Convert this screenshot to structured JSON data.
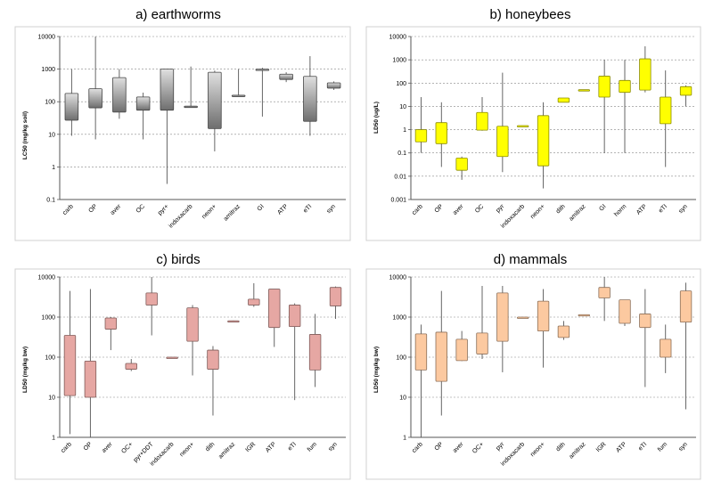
{
  "chart_data": [
    {
      "type": "box",
      "title": "a) earthworms",
      "ylabel": "LC50 (mg/kg soil)",
      "yscale": "log",
      "ylim": [
        0.1,
        10000
      ],
      "yticks": [
        "10000",
        "1000",
        "100",
        "10",
        "1",
        "0.1"
      ],
      "grid": "horizontal dashed",
      "color": "#8a8a8a",
      "categories": [
        "carb",
        "OP",
        "aver",
        "OC",
        "pyr+",
        "indoxacarb",
        "neon+",
        "amitraz",
        "GI",
        "ATP",
        "eTI",
        "syn"
      ],
      "boxes": [
        {
          "min": 9,
          "q1": 27,
          "q3": 180,
          "max": 1000
        },
        {
          "min": 7,
          "q1": 65,
          "q3": 250,
          "max": 10000
        },
        {
          "min": 30,
          "q1": 48,
          "q3": 550,
          "max": 1000
        },
        {
          "min": 7,
          "q1": 55,
          "q3": 140,
          "max": 190
        },
        {
          "min": 0.3,
          "q1": 55,
          "q3": 1000,
          "max": 1000
        },
        {
          "min": 68,
          "q1": 70,
          "q3": 73,
          "max": 1200
        },
        {
          "min": 3,
          "q1": 15,
          "q3": 800,
          "max": 900
        },
        {
          "min": 150,
          "q1": 152,
          "q3": 158,
          "max": 1000
        },
        {
          "min": 35,
          "q1": 930,
          "q3": 1000,
          "max": 1100
        },
        {
          "min": 400,
          "q1": 480,
          "q3": 700,
          "max": 800
        },
        {
          "min": 9,
          "q1": 25,
          "q3": 600,
          "max": 2500
        },
        {
          "min": 230,
          "q1": 260,
          "q3": 380,
          "max": 420
        }
      ]
    },
    {
      "type": "box",
      "title": "b) honeybees",
      "ylabel": "LD50 (ug/L)",
      "yscale": "log",
      "ylim": [
        0.001,
        10000
      ],
      "yticks": [
        "10000",
        "1000",
        "100",
        "10",
        "1",
        "0.1",
        "0.01",
        "0.001"
      ],
      "grid": "horizontal dashed",
      "color": "#ffff00",
      "categories": [
        "carb",
        "OP",
        "aver",
        "OC",
        "pyr",
        "indoxacarb",
        "neon+",
        "dith",
        "amitraz",
        "GI",
        "horm",
        "ATP",
        "eTI",
        "syn"
      ],
      "boxes": [
        {
          "min": 0.1,
          "q1": 0.3,
          "q3": 1,
          "max": 25
        },
        {
          "min": 0.025,
          "q1": 0.25,
          "q3": 2,
          "max": 15
        },
        {
          "min": 0.007,
          "q1": 0.018,
          "q3": 0.06,
          "max": 0.07
        },
        {
          "min": 0.9,
          "q1": 0.95,
          "q3": 5.5,
          "max": 25
        },
        {
          "min": 0.015,
          "q1": 0.07,
          "q3": 1.4,
          "max": 280
        },
        {
          "min": 1.3,
          "q1": 1.35,
          "q3": 1.5,
          "max": 1.5
        },
        {
          "min": 0.003,
          "q1": 0.028,
          "q3": 4,
          "max": 15
        },
        {
          "min": 15,
          "q1": 15,
          "q3": 23,
          "max": 23
        },
        {
          "min": 48,
          "q1": 49,
          "q3": 52,
          "max": 52
        },
        {
          "min": 0.1,
          "q1": 25,
          "q3": 200,
          "max": 1000
        },
        {
          "min": 0.1,
          "q1": 40,
          "q3": 130,
          "max": 1000
        },
        {
          "min": 40,
          "q1": 50,
          "q3": 1100,
          "max": 3800
        },
        {
          "min": 0.025,
          "q1": 1.8,
          "q3": 25,
          "max": 350
        },
        {
          "min": 10,
          "q1": 30,
          "q3": 70,
          "max": 80
        }
      ]
    },
    {
      "type": "box",
      "title": "c) birds",
      "ylabel": "LD50 (mg/kg bw)",
      "yscale": "log",
      "ylim": [
        1,
        10000
      ],
      "yticks": [
        "10000",
        "1000",
        "100",
        "10",
        "1"
      ],
      "grid": "horizontal dashed",
      "color": "#e6a7a3",
      "categories": [
        "carb",
        "OP",
        "aver",
        "OC+",
        "pyr+DDT",
        "indoxacarb",
        "neon+",
        "dith",
        "amitraz",
        "IGR",
        "ATP",
        "eTI",
        "fum",
        "syn"
      ],
      "boxes": [
        {
          "min": 1.2,
          "q1": 11,
          "q3": 350,
          "max": 4500
        },
        {
          "min": 1,
          "q1": 10,
          "q3": 80,
          "max": 5000
        },
        {
          "min": 150,
          "q1": 500,
          "q3": 950,
          "max": 1000
        },
        {
          "min": 45,
          "q1": 50,
          "q3": 70,
          "max": 90
        },
        {
          "min": 350,
          "q1": 2000,
          "q3": 4000,
          "max": 10000
        },
        {
          "min": 95,
          "q1": 97,
          "q3": 100,
          "max": 100
        },
        {
          "min": 35,
          "q1": 250,
          "q3": 1700,
          "max": 2000
        },
        {
          "min": 3.5,
          "q1": 50,
          "q3": 150,
          "max": 190
        },
        {
          "min": 780,
          "q1": 790,
          "q3": 810,
          "max": 820
        },
        {
          "min": 1800,
          "q1": 2000,
          "q3": 2800,
          "max": 7000
        },
        {
          "min": 180,
          "q1": 550,
          "q3": 5000,
          "max": 5000
        },
        {
          "min": 8.5,
          "q1": 580,
          "q3": 2000,
          "max": 2200
        },
        {
          "min": 18,
          "q1": 48,
          "q3": 370,
          "max": 1200
        },
        {
          "min": 900,
          "q1": 1900,
          "q3": 5500,
          "max": 5800
        }
      ]
    },
    {
      "type": "box",
      "title": "d) mammals",
      "ylabel": "LD50 (mg/kg bw)",
      "yscale": "log",
      "ylim": [
        1,
        10000
      ],
      "yticks": [
        "10000",
        "1000",
        "100",
        "10",
        "1"
      ],
      "grid": "horizontal dashed",
      "color": "#fcc9a0",
      "categories": [
        "carb",
        "OP",
        "aver",
        "OC+",
        "pyr",
        "indoxacarb",
        "neon+",
        "dith",
        "amitraz",
        "IGR",
        "ATP",
        "eTI",
        "fum",
        "syn"
      ],
      "boxes": [
        {
          "min": 1,
          "q1": 48,
          "q3": 380,
          "max": 650
        },
        {
          "min": 3.5,
          "q1": 25,
          "q3": 420,
          "max": 4500
        },
        {
          "min": 80,
          "q1": 82,
          "q3": 280,
          "max": 450
        },
        {
          "min": 90,
          "q1": 120,
          "q3": 400,
          "max": 6000
        },
        {
          "min": 42,
          "q1": 250,
          "q3": 4000,
          "max": 6000
        },
        {
          "min": 960,
          "q1": 970,
          "q3": 1000,
          "max": 1000
        },
        {
          "min": 55,
          "q1": 450,
          "q3": 2500,
          "max": 5000
        },
        {
          "min": 270,
          "q1": 310,
          "q3": 600,
          "max": 800
        },
        {
          "min": 1070,
          "q1": 1080,
          "q3": 1150,
          "max": 1150
        },
        {
          "min": 800,
          "q1": 3000,
          "q3": 5500,
          "max": 10000
        },
        {
          "min": 600,
          "q1": 700,
          "q3": 2700,
          "max": 2700
        },
        {
          "min": 18,
          "q1": 550,
          "q3": 1200,
          "max": 5000
        },
        {
          "min": 40,
          "q1": 100,
          "q3": 280,
          "max": 650
        },
        {
          "min": 5,
          "q1": 750,
          "q3": 4500,
          "max": 7200
        }
      ]
    }
  ]
}
